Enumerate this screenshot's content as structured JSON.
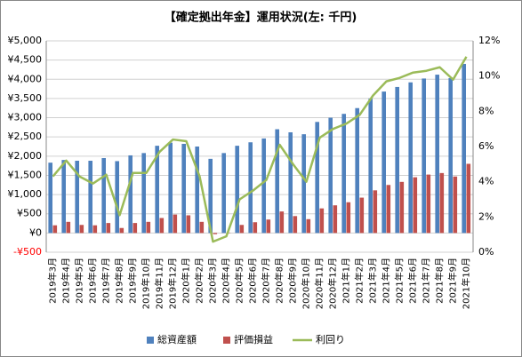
{
  "chart_data": {
    "type": "bar_line",
    "title": "【確定拠出年金】運用状況(左: 千円)",
    "categories": [
      "2019年3月",
      "2019年4月",
      "2019年5月",
      "2019年6月",
      "2019年7月",
      "2019年8月",
      "2019年9月",
      "2019年10月",
      "2019年11月",
      "2019年12月",
      "2020年1月",
      "2020年2月",
      "2020年3月",
      "2020年4月",
      "2020年5月",
      "2020年6月",
      "2020年7月",
      "2020年8月",
      "2020年9月",
      "2020年10月",
      "2020年11月",
      "2020年12月",
      "2021年1月",
      "2021年2月",
      "2021年3月",
      "2021年4月",
      "2021年5月",
      "2021年6月",
      "2021年7月",
      "2021年8月",
      "2021年9月",
      "2021年10月"
    ],
    "series": [
      {
        "name": "総資産額",
        "type": "bar",
        "color": "#4f81bd",
        "values": [
          1830,
          1900,
          1880,
          1880,
          1950,
          1870,
          2020,
          2080,
          2270,
          2350,
          2320,
          2250,
          1930,
          2080,
          2270,
          2360,
          2460,
          2700,
          2620,
          2570,
          2890,
          3000,
          3100,
          3250,
          3500,
          3680,
          3800,
          3920,
          4020,
          4120,
          4030,
          4400
        ]
      },
      {
        "name": "評価損益",
        "type": "bar",
        "color": "#c0504d",
        "values": [
          200,
          290,
          210,
          200,
          260,
          130,
          260,
          290,
          390,
          480,
          460,
          290,
          -30,
          10,
          210,
          280,
          350,
          560,
          440,
          360,
          640,
          720,
          800,
          920,
          1110,
          1250,
          1330,
          1450,
          1520,
          1560,
          1470,
          1800
        ]
      },
      {
        "name": "利回り",
        "type": "line",
        "axis": "y2",
        "color": "#9bbb59",
        "values": [
          4.3,
          5.2,
          4.3,
          3.9,
          4.4,
          2.1,
          4.5,
          4.5,
          5.7,
          6.4,
          6.3,
          4.3,
          0.6,
          0.9,
          3.0,
          3.5,
          4.1,
          6.1,
          5.0,
          4.0,
          6.5,
          7.0,
          7.3,
          7.8,
          8.9,
          9.7,
          9.9,
          10.2,
          10.3,
          10.5,
          9.8,
          11.1
        ]
      }
    ],
    "ylim": [
      -500,
      5000
    ],
    "yticks": [
      {
        "value": -500,
        "label": "-¥500"
      },
      {
        "value": 0,
        "label": "¥0"
      },
      {
        "value": 500,
        "label": "¥500"
      },
      {
        "value": 1000,
        "label": "¥1,000"
      },
      {
        "value": 1500,
        "label": "¥1,500"
      },
      {
        "value": 2000,
        "label": "¥2,000"
      },
      {
        "value": 2500,
        "label": "¥2,500"
      },
      {
        "value": 3000,
        "label": "¥3,000"
      },
      {
        "value": 3500,
        "label": "¥3,500"
      },
      {
        "value": 4000,
        "label": "¥4,000"
      },
      {
        "value": 4500,
        "label": "¥4,500"
      },
      {
        "value": 5000,
        "label": "¥5,000"
      }
    ],
    "y2lim": [
      0,
      12
    ],
    "y2ticks": [
      {
        "value": 0,
        "label": "0%"
      },
      {
        "value": 2,
        "label": "2%"
      },
      {
        "value": 4,
        "label": "4%"
      },
      {
        "value": 6,
        "label": "6%"
      },
      {
        "value": 8,
        "label": "8%"
      },
      {
        "value": 10,
        "label": "10%"
      },
      {
        "value": 12,
        "label": "12%"
      }
    ],
    "grid": true,
    "legend": "bottom"
  }
}
